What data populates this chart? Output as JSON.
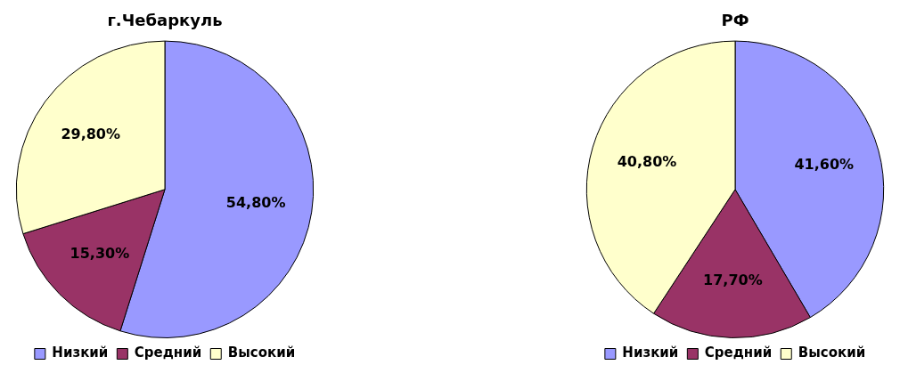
{
  "chart_data": [
    {
      "type": "pie",
      "title": "г.Чебаркуль",
      "categories": [
        "Низкий",
        "Средний",
        "Высокий"
      ],
      "values": [
        54.8,
        15.3,
        29.8
      ],
      "colors": [
        "#9999ff",
        "#993366",
        "#ffffcc"
      ],
      "value_labels": [
        "54,80%",
        "15,30%",
        "29,80%"
      ],
      "legend": "bottom"
    },
    {
      "type": "pie",
      "title": "РФ",
      "categories": [
        "Низкий",
        "Средний",
        "Высокий"
      ],
      "values": [
        41.6,
        17.7,
        40.8
      ],
      "colors": [
        "#9999ff",
        "#993366",
        "#ffffcc"
      ],
      "value_labels": [
        "41,60%",
        "17,70%",
        "40,80%"
      ],
      "legend": "bottom"
    }
  ]
}
